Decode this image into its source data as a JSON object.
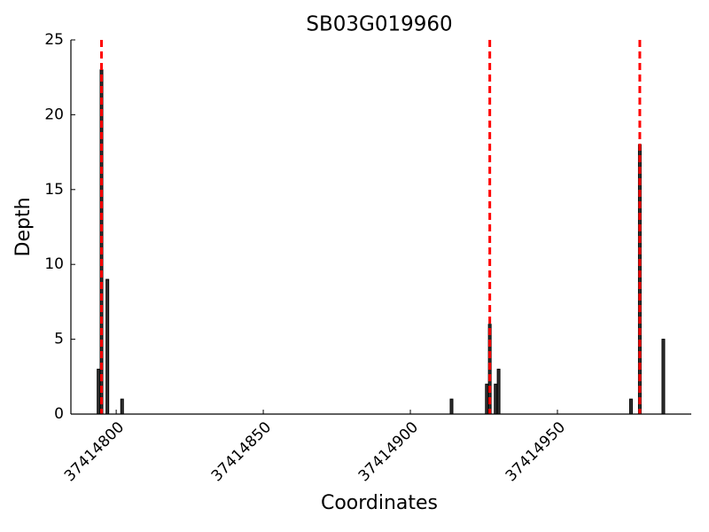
{
  "chart_data": {
    "type": "bar",
    "title": "SB03G019960",
    "x_label": "Coordinates",
    "y_label": "Depth",
    "x": [
      37414794,
      37414795,
      37414797,
      37414802,
      37414914,
      37414926,
      37414927,
      37414929,
      37414930,
      37414975,
      37414978,
      37414986
    ],
    "values": [
      3,
      23,
      9,
      1,
      1,
      2,
      6,
      2,
      3,
      1,
      18,
      5
    ],
    "color": "#333333",
    "edge_color": "#000000",
    "vlines": [
      37414795,
      37414927,
      37414978
    ],
    "vline_color": "#ff0000",
    "xlim": [
      37414784.6,
      37414995.5
    ],
    "xticks": [
      37414800,
      37414850,
      37414900,
      37414950
    ],
    "ylim": [
      0,
      25
    ],
    "yticks": [
      0,
      5,
      10,
      15,
      20,
      25
    ]
  }
}
